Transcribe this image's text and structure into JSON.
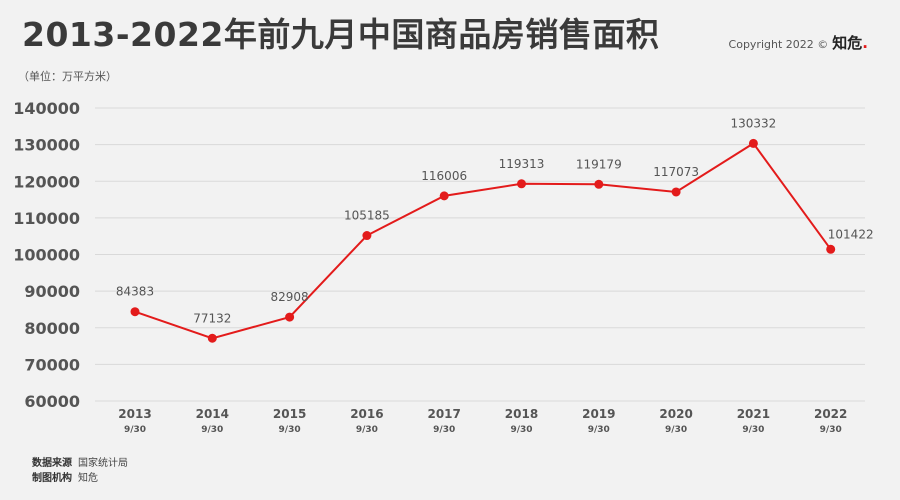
{
  "header": {
    "title": "2013-2022年前九月中国商品房销售面积",
    "copyright": "Copyright 2022 ©",
    "brand": "知危",
    "brand_dot": "."
  },
  "unit_label": "（单位：万平方米）",
  "footer": {
    "source_key": "数据来源",
    "source_value": "国家统计局",
    "maker_key": "制图机构",
    "maker_value": "知危"
  },
  "colors": {
    "line": "#e31b1b",
    "grid": "#d9d9d9",
    "axis_text": "#555555",
    "label_text": "#555555"
  },
  "chart_data": {
    "type": "line",
    "title": "2013-2022年前九月中国商品房销售面积",
    "ylabel": "（单位：万平方米）",
    "categories": [
      "2013",
      "2014",
      "2015",
      "2016",
      "2017",
      "2018",
      "2019",
      "2020",
      "2021",
      "2022"
    ],
    "category_sub": [
      "9/30",
      "9/30",
      "9/30",
      "9/30",
      "9/30",
      "9/30",
      "9/30",
      "9/30",
      "9/30",
      "9/30"
    ],
    "series": [
      {
        "values": [
          84383,
          77132,
          82908,
          105185,
          116006,
          119313,
          119179,
          117073,
          130332,
          101422
        ]
      }
    ],
    "data_labels": [
      "84383",
      "77132",
      "82908",
      "105185",
      "116006",
      "119313",
      "119179",
      "117073",
      "130332",
      "101422"
    ],
    "ylim": [
      60000,
      140000
    ],
    "yticks": [
      60000,
      70000,
      80000,
      90000,
      100000,
      110000,
      120000,
      130000,
      140000
    ],
    "ytick_labels": [
      "60000",
      "70000",
      "80000",
      "90000",
      "100000",
      "110000",
      "120000",
      "130000",
      "140000"
    ],
    "grid": true,
    "legend": "none"
  }
}
